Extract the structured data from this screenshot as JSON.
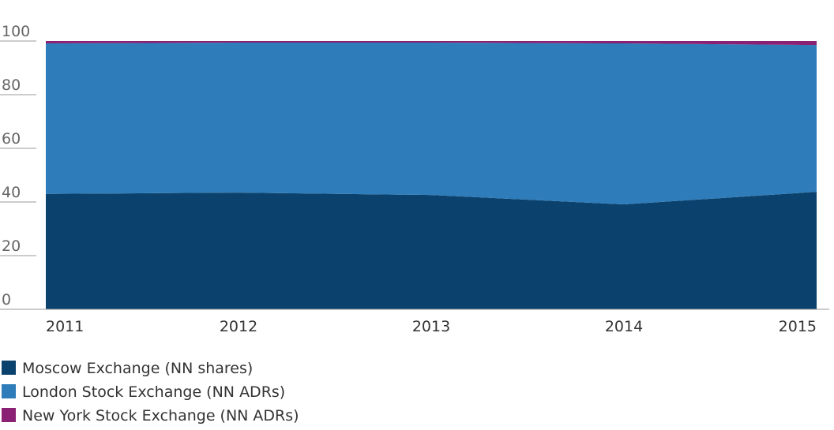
{
  "chart_data": {
    "type": "area",
    "stacked": true,
    "categories": [
      "2011",
      "2012",
      "2013",
      "2014",
      "2015"
    ],
    "series": [
      {
        "name": "Moscow Exchange (NN shares)",
        "color": "#0b426d",
        "values": [
          43,
          43.5,
          42.6,
          39.1,
          43.8
        ]
      },
      {
        "name": "London Stock Exchange (NN ADRs)",
        "color": "#2e7cb9",
        "values": [
          56.1,
          55.9,
          56.8,
          60,
          54.7
        ]
      },
      {
        "name": "New York Stock Exchange (NN ADRs)",
        "color": "#8b2174",
        "values": [
          0.9,
          0.6,
          0.6,
          0.9,
          1.5
        ]
      }
    ],
    "ylim": [
      0,
      100
    ],
    "yticks": [
      0,
      20,
      40,
      60,
      80,
      100
    ],
    "legend": "bottom"
  }
}
